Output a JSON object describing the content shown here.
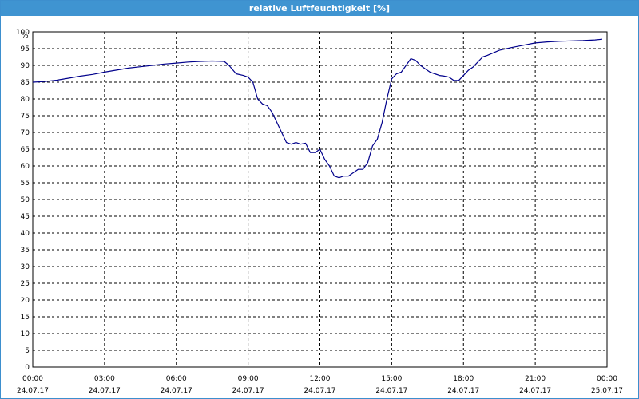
{
  "window": {
    "title": "relative Luftfeuchtigkeit [%]"
  },
  "colors": {
    "titlebar": "#3f94d1",
    "line": "#00008b",
    "grid": "#000000"
  },
  "chart_data": {
    "type": "line",
    "title": "relative Luftfeuchtigkeit [%]",
    "ylabel": "%",
    "ylim": [
      0,
      100
    ],
    "yticks": [
      0,
      5,
      10,
      15,
      20,
      25,
      30,
      35,
      40,
      45,
      50,
      55,
      60,
      65,
      70,
      75,
      80,
      85,
      90,
      95,
      100
    ],
    "xlim_hours": [
      0,
      24
    ],
    "xticks": [
      {
        "time": "00:00",
        "date": "24.07.17"
      },
      {
        "time": "03:00",
        "date": "24.07.17"
      },
      {
        "time": "06:00",
        "date": "24.07.17"
      },
      {
        "time": "09:00",
        "date": "24.07.17"
      },
      {
        "time": "12:00",
        "date": "24.07.17"
      },
      {
        "time": "15:00",
        "date": "24.07.17"
      },
      {
        "time": "18:00",
        "date": "24.07.17"
      },
      {
        "time": "21:00",
        "date": "24.07.17"
      },
      {
        "time": "00:00",
        "date": "25.07.17"
      }
    ],
    "grid": true,
    "series": [
      {
        "name": "",
        "x": [
          0,
          0.5,
          1,
          1.5,
          2,
          2.5,
          3,
          3.5,
          4,
          4.5,
          5,
          5.5,
          6,
          6.5,
          7,
          7.5,
          8,
          8.2,
          8.5,
          8.8,
          9,
          9.2,
          9.4,
          9.6,
          9.8,
          10,
          10.2,
          10.4,
          10.6,
          10.8,
          11,
          11.2,
          11.4,
          11.6,
          11.8,
          12,
          12.2,
          12.4,
          12.6,
          12.8,
          13,
          13.2,
          13.4,
          13.6,
          13.8,
          14,
          14.2,
          14.4,
          14.6,
          14.8,
          15,
          15.2,
          15.4,
          15.6,
          15.8,
          16,
          16.2,
          16.4,
          16.6,
          16.8,
          17,
          17.2,
          17.4,
          17.6,
          17.8,
          18,
          18.2,
          18.4,
          18.6,
          18.8,
          19,
          19.5,
          20,
          20.5,
          21,
          21.5,
          22,
          22.5,
          23,
          23.5,
          23.8
        ],
        "y": [
          85,
          85.2,
          85.6,
          86.2,
          86.8,
          87.3,
          88,
          88.6,
          89.2,
          89.6,
          90,
          90.4,
          90.7,
          91,
          91.2,
          91.3,
          91.2,
          90,
          87.5,
          87,
          86.5,
          85,
          80,
          78.5,
          78,
          76,
          73,
          70,
          67,
          66.5,
          67,
          66.5,
          66.8,
          64,
          64,
          65,
          62,
          60,
          57,
          56.5,
          57,
          57,
          58,
          59,
          59,
          61,
          66,
          68,
          73,
          80,
          86,
          87.5,
          88,
          90,
          92,
          91.5,
          90,
          89,
          88,
          87.5,
          87,
          86.8,
          86.5,
          85.5,
          85.5,
          87,
          88.5,
          89.5,
          91,
          92.5,
          93,
          94.5,
          95.3,
          96,
          96.7,
          97,
          97.2,
          97.3,
          97.4,
          97.6,
          97.8
        ]
      }
    ]
  }
}
